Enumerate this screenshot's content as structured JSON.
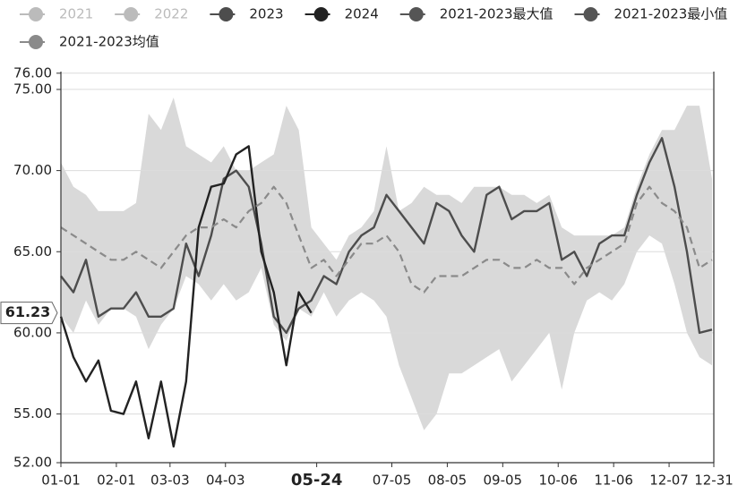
{
  "chart_data": {
    "type": "line",
    "xlim": [
      1,
      366
    ],
    "ylim": [
      52,
      76
    ],
    "xticks": [
      {
        "value": 1,
        "label": "01-01"
      },
      {
        "value": 32,
        "label": "02-01"
      },
      {
        "value": 62,
        "label": "03-03"
      },
      {
        "value": 93,
        "label": "04-03"
      },
      {
        "value": 144,
        "label": "05-24"
      },
      {
        "value": 186,
        "label": "07-05"
      },
      {
        "value": 217,
        "label": "08-05"
      },
      {
        "value": 248,
        "label": "09-05"
      },
      {
        "value": 279,
        "label": "10-06"
      },
      {
        "value": 310,
        "label": "11-06"
      },
      {
        "value": 341,
        "label": "12-07"
      },
      {
        "value": 366,
        "label": "12-31"
      }
    ],
    "yticks": [
      {
        "value": 52,
        "label": "52.00"
      },
      {
        "value": 55,
        "label": "55.00"
      },
      {
        "value": 60,
        "label": "60.00"
      },
      {
        "value": 65,
        "label": "65.00"
      },
      {
        "value": 70,
        "label": "70.00"
      },
      {
        "value": 75,
        "label": "75.00"
      },
      {
        "value": 76,
        "label": "76.00"
      }
    ],
    "grid": true,
    "pointer": {
      "x": 144,
      "y": 61.23
    },
    "band_color": "#d9d9d9",
    "x": [
      1,
      8,
      15,
      22,
      29,
      36,
      43,
      50,
      57,
      64,
      71,
      78,
      85,
      92,
      99,
      106,
      113,
      120,
      127,
      134,
      141,
      148,
      155,
      162,
      169,
      176,
      183,
      190,
      197,
      204,
      211,
      218,
      225,
      232,
      239,
      246,
      253,
      260,
      267,
      274,
      281,
      288,
      295,
      302,
      309,
      316,
      323,
      330,
      337,
      344,
      351,
      358,
      365
    ],
    "series": [
      {
        "name": "2021",
        "color": "#bbbbbb",
        "visible": false
      },
      {
        "name": "2022",
        "color": "#bbbbbb",
        "visible": false
      },
      {
        "name": "2023",
        "color": "#4d4d4d",
        "visible": true,
        "values": [
          63.5,
          62.5,
          64.5,
          61.0,
          61.5,
          61.5,
          62.5,
          61.0,
          61.0,
          61.5,
          65.5,
          63.5,
          66.0,
          69.5,
          70.0,
          69.0,
          65.5,
          61.0,
          60.0,
          61.5,
          62.0,
          63.5,
          63.0,
          65.0,
          66.0,
          66.5,
          68.5,
          67.5,
          66.5,
          65.5,
          68.0,
          67.5,
          66.0,
          65.0,
          68.5,
          69.0,
          67.0,
          67.5,
          67.5,
          68.0,
          64.5,
          65.0,
          63.5,
          65.5,
          66.0,
          66.0,
          68.5,
          70.5,
          72.0,
          69.0,
          65.0,
          60.0,
          60.2
        ]
      },
      {
        "name": "2024",
        "color": "#222222",
        "visible": true,
        "values": [
          61.0,
          58.5,
          57.0,
          58.3,
          55.2,
          55.0,
          57.0,
          53.5,
          57.0,
          53.0,
          57.0,
          66.5,
          69.0,
          69.2,
          71.0,
          71.5,
          65.0,
          62.5,
          58.0,
          62.5,
          61.23,
          null,
          null,
          null,
          null,
          null,
          null,
          null,
          null,
          null,
          null,
          null,
          null,
          null,
          null,
          null,
          null,
          null,
          null,
          null,
          null,
          null,
          null,
          null,
          null,
          null,
          null,
          null,
          null,
          null,
          null,
          null,
          null
        ]
      },
      {
        "name": "2021-2023最大值",
        "color": "#555555",
        "visible": true,
        "role": "band-top",
        "values": [
          70.5,
          69.0,
          68.5,
          67.5,
          67.5,
          67.5,
          68.0,
          73.5,
          72.5,
          74.5,
          71.5,
          71.0,
          70.5,
          71.5,
          70.0,
          70.0,
          70.5,
          71.0,
          74.0,
          72.5,
          66.5,
          65.5,
          64.5,
          66.0,
          66.5,
          67.5,
          71.5,
          67.5,
          68.0,
          69.0,
          68.5,
          68.5,
          68.0,
          69.0,
          69.0,
          69.0,
          68.5,
          68.5,
          68.0,
          68.5,
          66.5,
          66.0,
          66.0,
          66.0,
          66.0,
          66.5,
          69.0,
          71.0,
          72.5,
          72.5,
          74.0,
          74.0,
          69.5
        ]
      },
      {
        "name": "2021-2023最小值",
        "color": "#555555",
        "visible": true,
        "role": "band-bottom",
        "values": [
          61.0,
          60.0,
          62.0,
          60.5,
          61.5,
          61.5,
          61.0,
          59.0,
          60.5,
          61.5,
          63.5,
          63.0,
          62.0,
          63.0,
          62.0,
          62.5,
          64.0,
          60.5,
          59.5,
          61.5,
          61.0,
          62.5,
          61.0,
          62.0,
          62.5,
          62.0,
          61.0,
          58.0,
          56.0,
          54.0,
          55.0,
          57.5,
          57.5,
          58.0,
          58.5,
          59.0,
          57.0,
          58.0,
          59.0,
          60.0,
          56.5,
          60.0,
          62.0,
          62.5,
          62.0,
          63.0,
          65.0,
          66.0,
          65.5,
          63.0,
          60.0,
          58.5,
          58.0
        ]
      },
      {
        "name": "2021-2023均值",
        "color": "#8a8a8a",
        "visible": true,
        "dashed": true,
        "values": [
          66.5,
          66.0,
          65.5,
          65.0,
          64.5,
          64.5,
          65.0,
          64.5,
          64.0,
          65.0,
          66.0,
          66.5,
          66.5,
          67.0,
          66.5,
          67.5,
          68.0,
          69.0,
          68.0,
          66.0,
          64.0,
          64.5,
          63.5,
          64.5,
          65.5,
          65.5,
          66.0,
          65.0,
          63.0,
          62.5,
          63.5,
          63.5,
          63.5,
          64.0,
          64.5,
          64.5,
          64.0,
          64.0,
          64.5,
          64.0,
          64.0,
          63.0,
          64.0,
          64.5,
          65.0,
          65.5,
          68.0,
          69.0,
          68.0,
          67.5,
          66.5,
          64.0,
          64.5
        ]
      }
    ]
  }
}
